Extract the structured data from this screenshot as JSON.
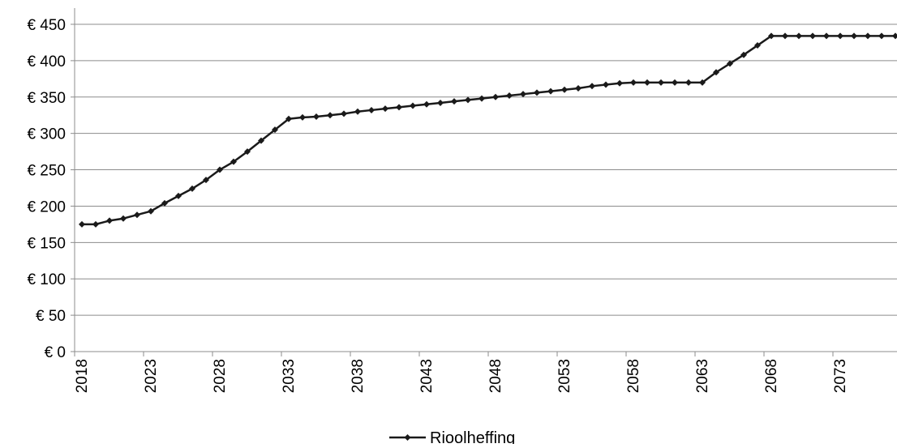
{
  "chart_data": {
    "type": "line",
    "title": "",
    "xlabel": "",
    "ylabel": "",
    "x": [
      2018,
      2019,
      2020,
      2021,
      2022,
      2023,
      2024,
      2025,
      2026,
      2027,
      2028,
      2029,
      2030,
      2031,
      2032,
      2033,
      2034,
      2035,
      2036,
      2037,
      2038,
      2039,
      2040,
      2041,
      2042,
      2043,
      2044,
      2045,
      2046,
      2047,
      2048,
      2049,
      2050,
      2051,
      2052,
      2053,
      2054,
      2055,
      2056,
      2057,
      2058,
      2059,
      2060,
      2061,
      2062,
      2063,
      2064,
      2065,
      2066,
      2067,
      2068,
      2069,
      2070,
      2071,
      2072,
      2073,
      2074,
      2075,
      2076,
      2077
    ],
    "series": [
      {
        "name": "Rioolheffing",
        "color": "#1a1a1a",
        "values": [
          175,
          175,
          180,
          183,
          188,
          193,
          204,
          214,
          224,
          236,
          250,
          261,
          275,
          290,
          305,
          320,
          322,
          323,
          325,
          327,
          330,
          332,
          334,
          336,
          338,
          340,
          342,
          344,
          346,
          348,
          350,
          352,
          354,
          356,
          358,
          360,
          362,
          365,
          367,
          369,
          370,
          370,
          370,
          370,
          370,
          370,
          384,
          396,
          408,
          421,
          434,
          434,
          434,
          434,
          434,
          434,
          434,
          434,
          434,
          434
        ]
      }
    ],
    "ylim": [
      0,
      450
    ],
    "yticks": [
      0,
      50,
      100,
      150,
      200,
      250,
      300,
      350,
      400,
      450
    ],
    "ytick_labels": [
      "€ 0",
      "€ 50",
      "€ 100",
      "€ 150",
      "€ 200",
      "€ 250",
      "€ 300",
      "€ 350",
      "€ 400",
      "€ 450"
    ],
    "xtick_labels": [
      "2018",
      "2023",
      "2028",
      "2033",
      "2038",
      "2043",
      "2048",
      "2053",
      "2058",
      "2063",
      "2068",
      "2073"
    ],
    "grid": "horizontal",
    "gridline_color": "#8c8c8c",
    "axis_color": "#8c8c8c",
    "legend": "bottom-center",
    "marker": "diamond"
  }
}
